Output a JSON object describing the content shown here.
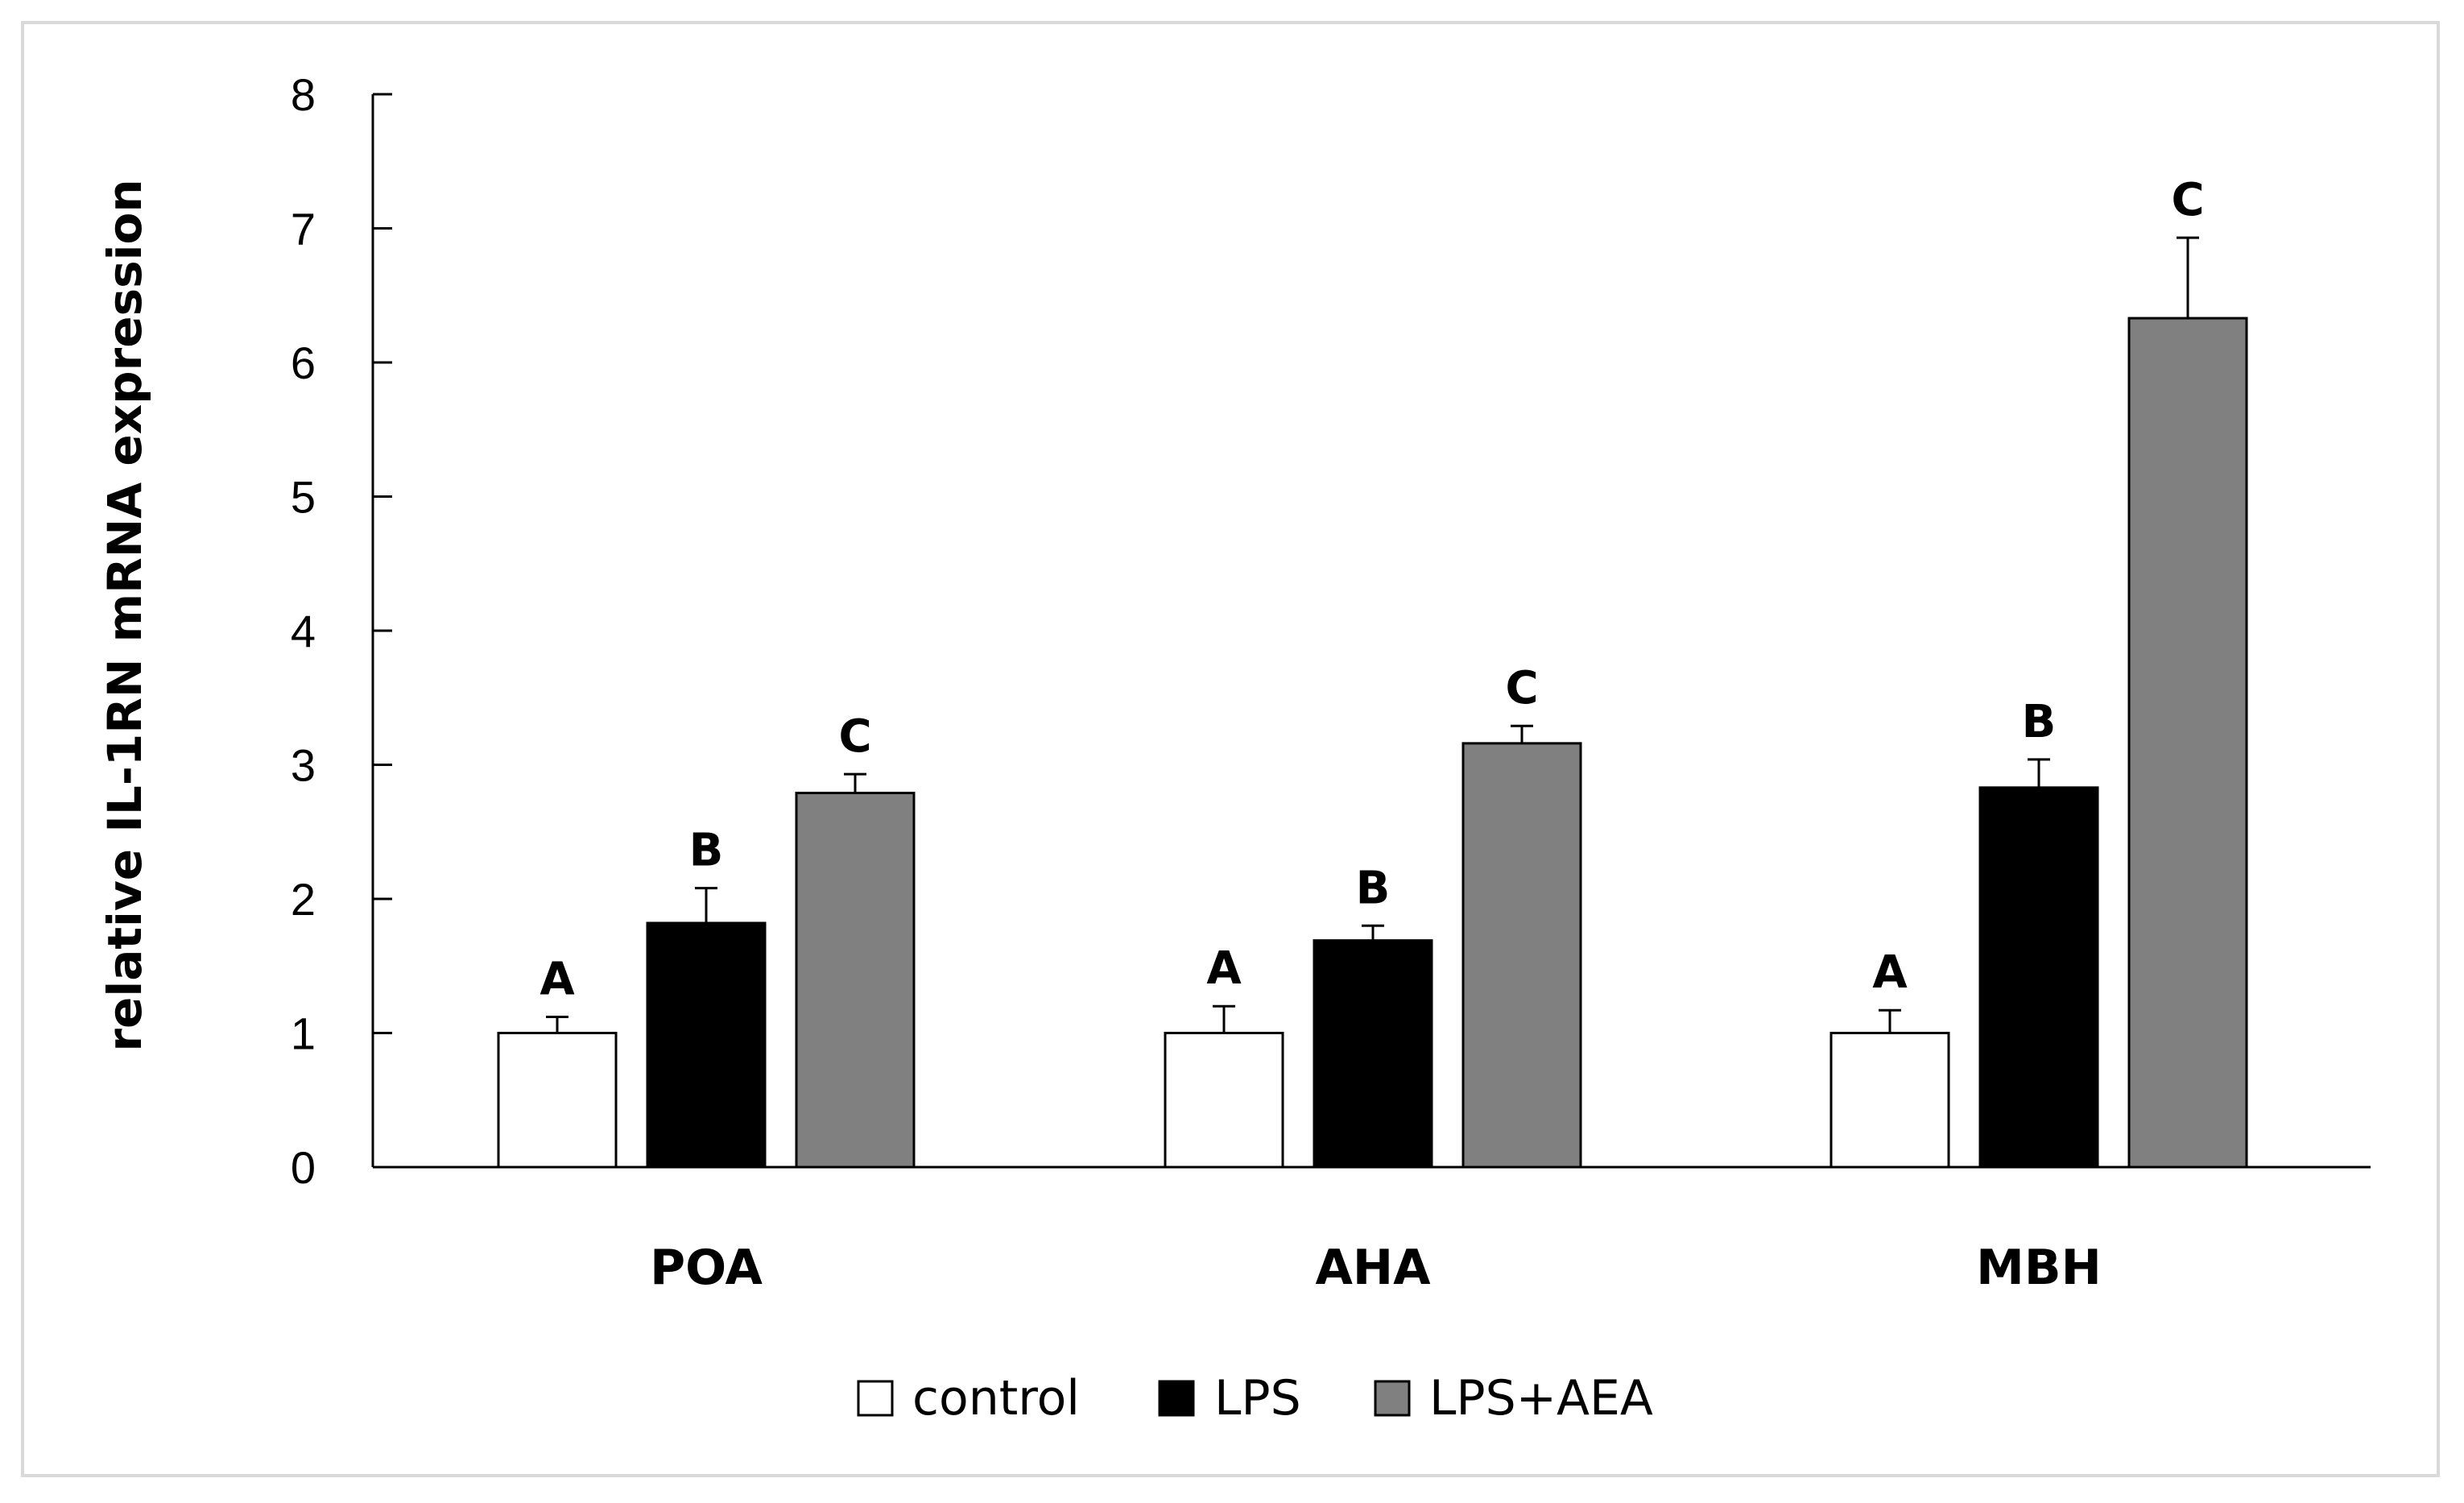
{
  "chart_data": {
    "type": "bar",
    "title": "",
    "xlabel": "",
    "ylabel": "relative IL-1RN mRNA expression",
    "ylim": [
      0,
      8
    ],
    "yticks": [
      "0",
      "1",
      "2",
      "3",
      "4",
      "5",
      "6",
      "7",
      "8"
    ],
    "grid": false,
    "legend_position": "bottom",
    "categories": [
      "POA",
      "AHA",
      "MBH"
    ],
    "series": [
      {
        "name": "control",
        "color": "#ffffff",
        "values": [
          1.0,
          1.0,
          1.0
        ],
        "errors": [
          0.12,
          0.2,
          0.17
        ],
        "labels": [
          "A",
          "A",
          "A"
        ]
      },
      {
        "name": "LPS",
        "color": "#000000",
        "values": [
          1.82,
          1.69,
          2.83
        ],
        "errors": [
          0.26,
          0.11,
          0.21
        ],
        "labels": [
          "B",
          "B",
          "B"
        ]
      },
      {
        "name": "LPS+AEA",
        "color": "#808080",
        "values": [
          2.79,
          3.16,
          6.33
        ],
        "errors": [
          0.14,
          0.13,
          0.6
        ],
        "labels": [
          "C",
          "C",
          "C"
        ]
      }
    ]
  }
}
